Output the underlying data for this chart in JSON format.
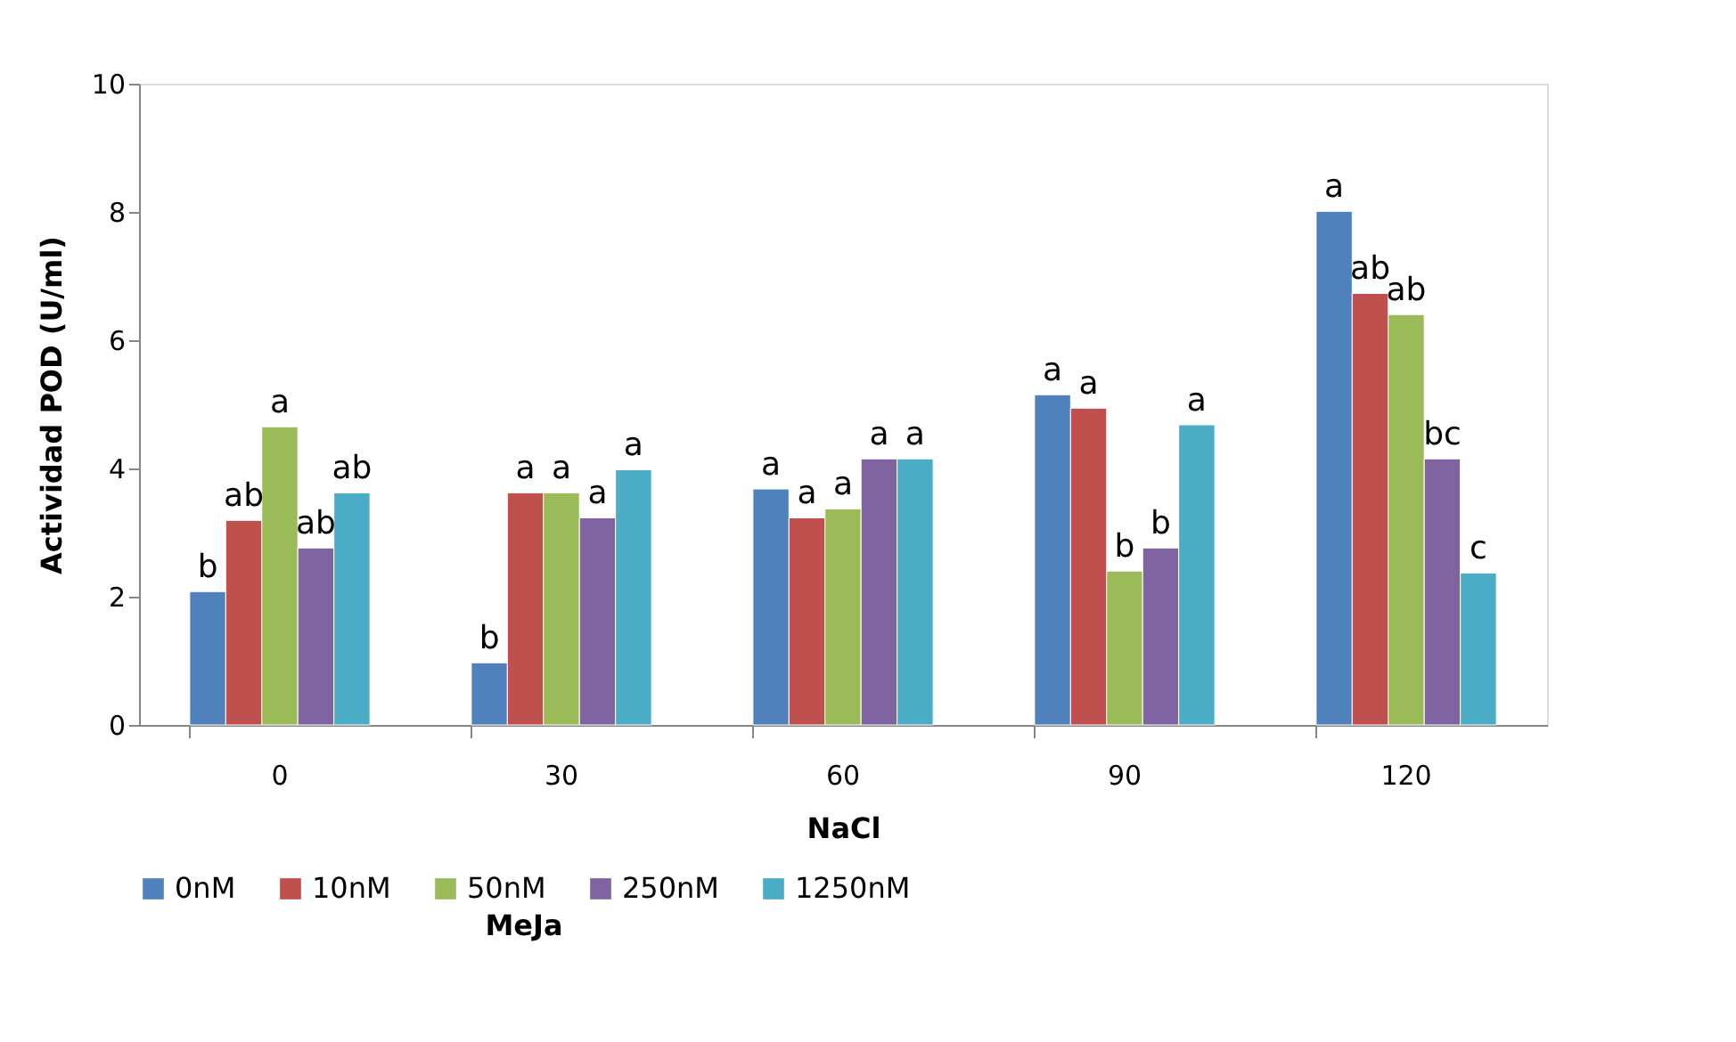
{
  "chart_data": {
    "type": "bar",
    "xlabel": "NaCl",
    "ylabel": "Actividad POD (U/ml)",
    "legend_title": "MeJa",
    "categories": [
      "0",
      "30",
      "60",
      "90",
      "120"
    ],
    "series": [
      {
        "name": "0nM",
        "color": "#4f81bd",
        "values": [
          2.08,
          0.97,
          3.68,
          5.15,
          8.01
        ],
        "value_labels": [
          "b",
          "b",
          "a",
          "a",
          "a"
        ]
      },
      {
        "name": "10nM",
        "color": "#c0504d",
        "values": [
          3.19,
          3.62,
          3.23,
          4.94,
          6.73
        ],
        "value_labels": [
          "ab",
          "a",
          "a",
          "a",
          "ab"
        ]
      },
      {
        "name": "50nM",
        "color": "#9bbb59",
        "values": [
          4.65,
          3.62,
          3.37,
          2.4,
          6.4
        ],
        "value_labels": [
          "a",
          "a",
          "a",
          "b",
          "ab"
        ]
      },
      {
        "name": "250nM",
        "color": "#8064a2",
        "values": [
          2.76,
          3.23,
          4.15,
          2.76,
          4.15
        ],
        "value_labels": [
          "ab",
          "a",
          "a",
          "b",
          "bc"
        ]
      },
      {
        "name": "1250nM",
        "color": "#4bacc6",
        "values": [
          3.62,
          3.98,
          4.15,
          4.68,
          2.37
        ],
        "value_labels": [
          "ab",
          "a",
          "a",
          "a",
          "c"
        ]
      }
    ],
    "ylim": [
      0,
      10
    ],
    "yticks": [
      0,
      2,
      4,
      6,
      8,
      10
    ],
    "grid": false,
    "legend": "bottom"
  }
}
